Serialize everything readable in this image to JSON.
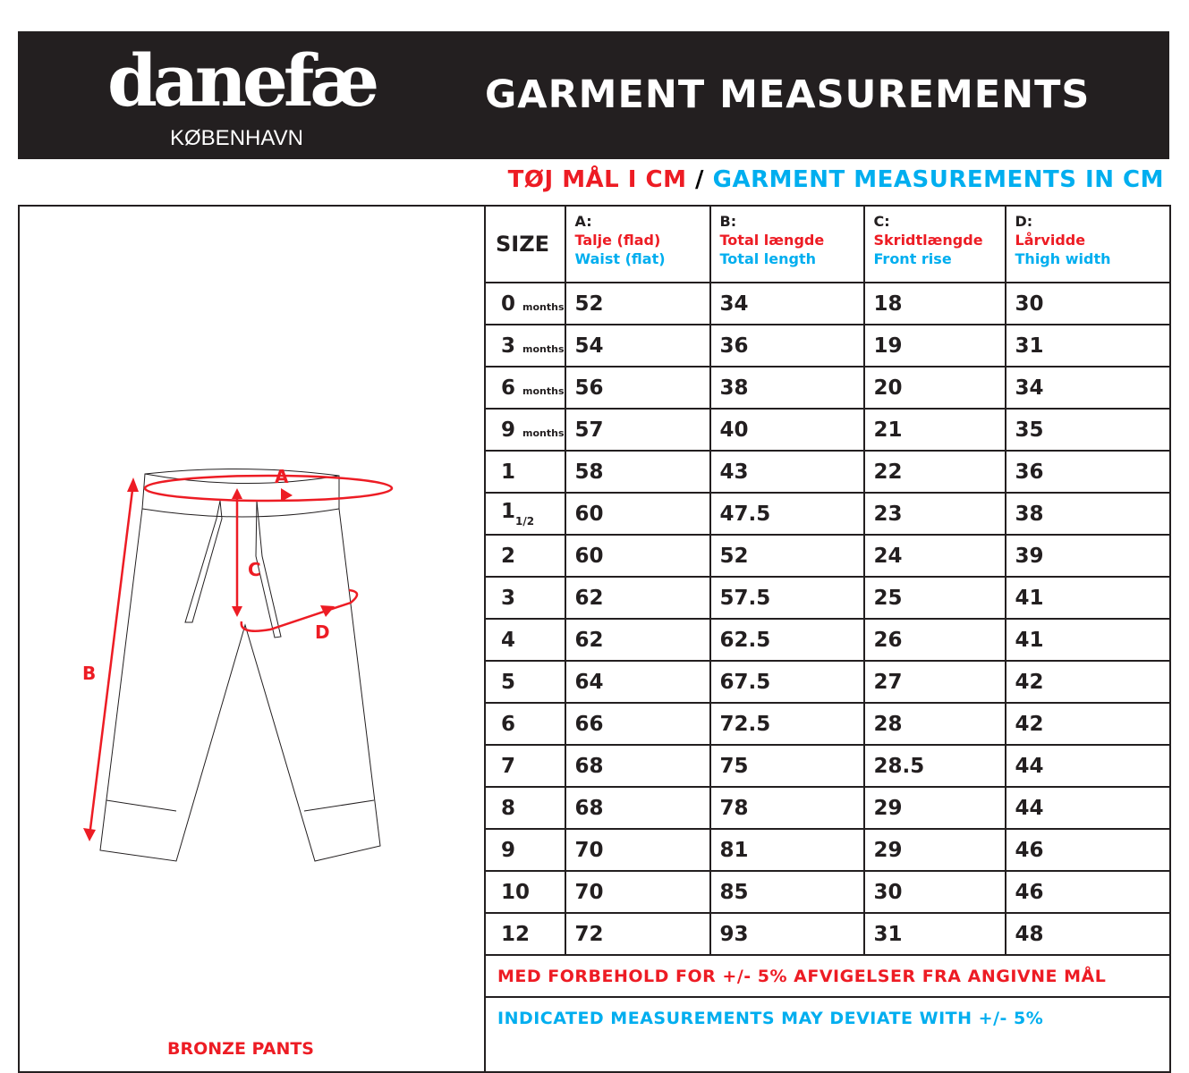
{
  "header": {
    "brand": "danefæ",
    "brand_sub": "KØBENHAVN",
    "title": "GARMENT MEASUREMENTS"
  },
  "subtitle": {
    "danish": "TØJ MÅL I CM",
    "separator": "/",
    "english": "GARMENT MEASUREMENTS IN CM"
  },
  "diagram": {
    "product_name": "BRONZE PANTS",
    "labels": {
      "a": "A",
      "b": "B",
      "c": "C",
      "d": "D"
    }
  },
  "colors": {
    "red": "#ed1c24",
    "blue": "#00aeef",
    "dark": "#231f20"
  },
  "table": {
    "size_header": "SIZE",
    "columns": [
      {
        "letter": "A:",
        "danish": "Talje (flad)",
        "english": "Waist (flat)"
      },
      {
        "letter": "B:",
        "danish": "Total længde",
        "english": "Total length"
      },
      {
        "letter": "C:",
        "danish": "Skridtlængde",
        "english": "Front rise"
      },
      {
        "letter": "D:",
        "danish": "Lårvidde",
        "english": "Thigh width"
      }
    ],
    "rows": [
      {
        "size": "0",
        "suffix": "months",
        "sub": "",
        "a": "52",
        "b": "34",
        "c": "18",
        "d": "30"
      },
      {
        "size": "3",
        "suffix": "months",
        "sub": "",
        "a": "54",
        "b": "36",
        "c": "19",
        "d": "31"
      },
      {
        "size": "6",
        "suffix": "months",
        "sub": "",
        "a": "56",
        "b": "38",
        "c": "20",
        "d": "34"
      },
      {
        "size": "9",
        "suffix": "months",
        "sub": "",
        "a": "57",
        "b": "40",
        "c": "21",
        "d": "35"
      },
      {
        "size": "1",
        "suffix": "",
        "sub": "",
        "a": "58",
        "b": "43",
        "c": "22",
        "d": "36"
      },
      {
        "size": "1",
        "suffix": "",
        "sub": "1/2",
        "a": "60",
        "b": "47.5",
        "c": "23",
        "d": "38"
      },
      {
        "size": "2",
        "suffix": "",
        "sub": "",
        "a": "60",
        "b": "52",
        "c": "24",
        "d": "39"
      },
      {
        "size": "3",
        "suffix": "",
        "sub": "",
        "a": "62",
        "b": "57.5",
        "c": "25",
        "d": "41"
      },
      {
        "size": "4",
        "suffix": "",
        "sub": "",
        "a": "62",
        "b": "62.5",
        "c": "26",
        "d": "41"
      },
      {
        "size": "5",
        "suffix": "",
        "sub": "",
        "a": "64",
        "b": "67.5",
        "c": "27",
        "d": "42"
      },
      {
        "size": "6",
        "suffix": "",
        "sub": "",
        "a": "66",
        "b": "72.5",
        "c": "28",
        "d": "42"
      },
      {
        "size": "7",
        "suffix": "",
        "sub": "",
        "a": "68",
        "b": "75",
        "c": "28.5",
        "d": "44"
      },
      {
        "size": "8",
        "suffix": "",
        "sub": "",
        "a": "68",
        "b": "78",
        "c": "29",
        "d": "44"
      },
      {
        "size": "9",
        "suffix": "",
        "sub": "",
        "a": "70",
        "b": "81",
        "c": "29",
        "d": "46"
      },
      {
        "size": "10",
        "suffix": "",
        "sub": "",
        "a": "70",
        "b": "85",
        "c": "30",
        "d": "46"
      },
      {
        "size": "12",
        "suffix": "",
        "sub": "",
        "a": "72",
        "b": "93",
        "c": "31",
        "d": "48"
      }
    ],
    "note_danish": "MED FORBEHOLD FOR +/- 5% AFVIGELSER FRA ANGIVNE MÅL",
    "note_english": "INDICATED MEASUREMENTS MAY DEVIATE WITH +/- 5%"
  }
}
